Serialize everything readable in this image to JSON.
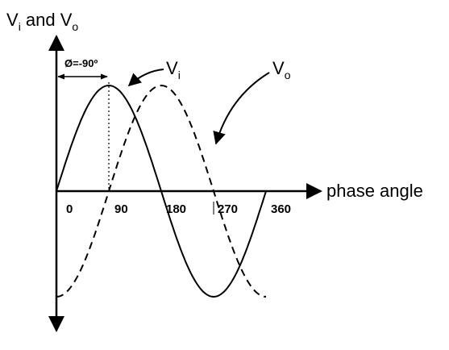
{
  "axes": {
    "y_label": {
      "v1": "V",
      "sub1": "i",
      "mid": " and V",
      "sub2": "o"
    },
    "x_label": "phase angle",
    "ticks": [
      "0",
      "90",
      "180",
      "270",
      "360"
    ]
  },
  "annotations": {
    "phase_shift": "Ø=-90º",
    "vi": {
      "main": "V",
      "sub": "i"
    },
    "vo": {
      "main": "V",
      "sub": "o"
    }
  }
}
